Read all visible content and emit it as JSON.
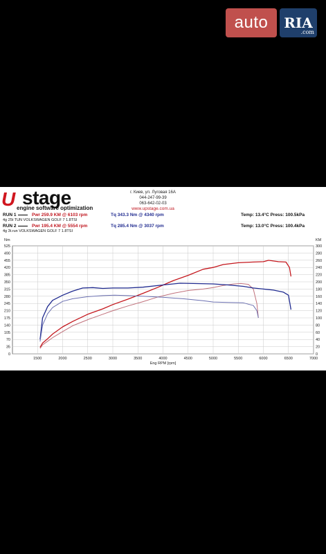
{
  "watermark": {
    "auto": "auto",
    "ria": "RIA",
    "ria_suffix": ".com"
  },
  "logo": {
    "up": "U",
    "stage": "stage",
    "tagline": "engine software optimization"
  },
  "contact": {
    "address": "г. Киев, ул. Луговая 16А",
    "phone1": "044-247-99-39",
    "phone2": "063-642-02-03",
    "url": "www.upstage.com.ua"
  },
  "runs": [
    {
      "name": "RUN 1",
      "pwr": "Pwr  259.9 KM @ 6103 rpm",
      "tq": "Tq  343.3 Nm @ 4340 rpm",
      "desc": "4g 25t TUN VOLKSWAGEN GOLF 7 1.8TSI",
      "env": "Temp: 13.4°C    Press: 100.5kPa"
    },
    {
      "name": "RUN 2",
      "pwr": "Pwr  195.4 KM @ 5554 rpm",
      "tq": "Tq  285.4 Nm @ 3037 rpm",
      "desc": "4g 3t.run VOLKSWAGEN GOLF 7 1.8TSI",
      "env": "Temp: 13.0°C    Press: 100.4kPa"
    }
  ],
  "chart_data": {
    "type": "line",
    "xlabel": "Eng RPM [rpm]",
    "y_left_unit": "Nm",
    "y_right_unit": "KM",
    "xlim": [
      1000,
      7000
    ],
    "x_ticks": [
      1500,
      2000,
      2500,
      3000,
      3500,
      4000,
      4500,
      5000,
      5500,
      6000,
      6500,
      7000
    ],
    "y_left_lim": [
      0,
      525
    ],
    "y_left_ticks": [
      0,
      35,
      70,
      105,
      140,
      175,
      210,
      245,
      280,
      315,
      350,
      385,
      420,
      455,
      490,
      525
    ],
    "y_right_lim": [
      0,
      300
    ],
    "y_right_ticks": [
      0,
      20,
      40,
      60,
      80,
      100,
      120,
      140,
      160,
      180,
      200,
      220,
      240,
      260,
      280,
      300
    ],
    "grid": true,
    "colors": {
      "run1_power": "#c4161c",
      "run2_power": "#c0707a",
      "run1_torque": "#1f2a8f",
      "run2_torque": "#6a6fb0"
    },
    "series": [
      {
        "name": "RUN 1",
        "quantity": "power",
        "axis": "right",
        "x": [
          1550,
          1600,
          1700,
          1800,
          2000,
          2200,
          2500,
          2800,
          3000,
          3300,
          3600,
          3900,
          4200,
          4500,
          4800,
          5000,
          5200,
          5500,
          5800,
          6000,
          6103,
          6300,
          6450,
          6520,
          6550
        ],
        "values": [
          18,
          30,
          42,
          55,
          75,
          90,
          110,
          125,
          137,
          152,
          168,
          185,
          203,
          218,
          235,
          240,
          248,
          253,
          255,
          256,
          259.9,
          256,
          255,
          240,
          215
        ]
      },
      {
        "name": "RUN 2",
        "quantity": "power",
        "axis": "right",
        "x": [
          1550,
          1600,
          1700,
          1800,
          2000,
          2200,
          2500,
          2800,
          3000,
          3300,
          3600,
          3900,
          4200,
          4500,
          4800,
          5000,
          5200,
          5400,
          5554,
          5700,
          5800,
          5870,
          5900
        ],
        "values": [
          15,
          25,
          35,
          45,
          62,
          78,
          95,
          110,
          120,
          133,
          145,
          158,
          168,
          176,
          180,
          184,
          190,
          194,
          195.4,
          193,
          180,
          140,
          100
        ]
      },
      {
        "name": "RUN 1",
        "quantity": "torque",
        "axis": "left",
        "x": [
          1550,
          1600,
          1700,
          1800,
          2000,
          2200,
          2400,
          2600,
          2800,
          3000,
          3300,
          3600,
          4000,
          4340,
          4600,
          5000,
          5300,
          5600,
          5800,
          6000,
          6200,
          6400,
          6500,
          6550
        ],
        "values": [
          70,
          175,
          230,
          260,
          285,
          305,
          320,
          322,
          318,
          320,
          320,
          324,
          335,
          343.3,
          342,
          340,
          335,
          328,
          320,
          315,
          310,
          300,
          285,
          215
        ]
      },
      {
        "name": "RUN 2",
        "quantity": "torque",
        "axis": "left",
        "x": [
          1550,
          1600,
          1700,
          1800,
          2000,
          2200,
          2500,
          2800,
          3037,
          3300,
          3600,
          4000,
          4400,
          4800,
          5000,
          5300,
          5600,
          5800,
          5870,
          5900
        ],
        "values": [
          60,
          140,
          195,
          225,
          255,
          268,
          278,
          283,
          285.4,
          283,
          280,
          275,
          268,
          258,
          252,
          250,
          248,
          235,
          210,
          175
        ]
      }
    ]
  }
}
